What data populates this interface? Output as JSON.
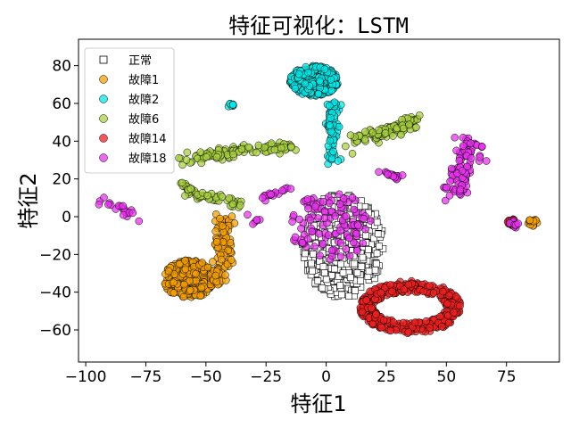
{
  "chart_data": {
    "type": "scatter",
    "title": "特征可视化：LSTM",
    "xlabel": "特征1",
    "ylabel": "特征2",
    "xlim": [
      -103,
      97
    ],
    "ylim": [
      -77,
      94
    ],
    "xticks": [
      -100,
      -75,
      -50,
      -25,
      0,
      25,
      50,
      75
    ],
    "yticks": [
      -60,
      -40,
      -20,
      0,
      20,
      40,
      60,
      80
    ],
    "grid": false,
    "legend_position": "top-left",
    "series": [
      {
        "name": "正常",
        "marker": "square",
        "color": "#ffffff",
        "edge_color": "#000000",
        "clusters": [
          {
            "shape": "blob",
            "center": [
              7,
              -15
            ],
            "rx": 17,
            "ry": 28,
            "count": 450
          }
        ]
      },
      {
        "name": "故障1",
        "marker": "circle",
        "color": "#f5a000",
        "edge_color": "#000000",
        "clusters": [
          {
            "shape": "blob",
            "center": [
              -57,
              -33
            ],
            "rx": 11,
            "ry": 10,
            "count": 350
          },
          {
            "shape": "line",
            "points": [
              [
                -46,
                -35
              ],
              [
                -42,
                -25
              ],
              [
                -43,
                -10
              ],
              [
                -43,
                0
              ]
            ],
            "spread": 2,
            "count": 90
          },
          {
            "shape": "blob",
            "center": [
              86,
              -3
            ],
            "rx": 2,
            "ry": 2,
            "count": 12
          }
        ]
      },
      {
        "name": "故障2",
        "marker": "circle",
        "color": "#00e8e8",
        "edge_color": "#000000",
        "clusters": [
          {
            "shape": "blob",
            "center": [
              -5,
              72
            ],
            "rx": 10,
            "ry": 8,
            "count": 300
          },
          {
            "shape": "line",
            "points": [
              [
                3,
                62
              ],
              [
                2,
                45
              ],
              [
                3,
                30
              ]
            ],
            "spread": 1.5,
            "count": 70
          },
          {
            "shape": "blob",
            "center": [
              -40,
              59
            ],
            "rx": 1.5,
            "ry": 1,
            "count": 8
          }
        ]
      },
      {
        "name": "故障6",
        "marker": "circle",
        "color": "#a8d040",
        "edge_color": "#000000",
        "clusters": [
          {
            "shape": "line",
            "points": [
              [
                -60,
                30
              ],
              [
                -45,
                33
              ],
              [
                -30,
                36
              ],
              [
                -15,
                37
              ]
            ],
            "spread": 1.5,
            "count": 110
          },
          {
            "shape": "line",
            "points": [
              [
                -60,
                18
              ],
              [
                -55,
                11
              ],
              [
                -40,
                9
              ],
              [
                -35,
                6
              ]
            ],
            "spread": 1.2,
            "count": 60
          },
          {
            "shape": "line",
            "points": [
              [
                12,
                40
              ],
              [
                25,
                45
              ],
              [
                38,
                52
              ]
            ],
            "spread": 1.8,
            "count": 100
          }
        ]
      },
      {
        "name": "故障14",
        "marker": "circle",
        "color": "#f02020",
        "edge_color": "#000000",
        "clusters": [
          {
            "shape": "ring",
            "center": [
              35,
              -48
            ],
            "rx": 18,
            "ry": 11,
            "thickness": 3,
            "count": 420
          },
          {
            "shape": "blob",
            "center": [
              77,
              -3
            ],
            "rx": 1.6,
            "ry": 2,
            "count": 18
          }
        ]
      },
      {
        "name": "故障18",
        "marker": "circle",
        "color": "#e833ee",
        "edge_color": "#000000",
        "clusters": [
          {
            "shape": "line",
            "points": [
              [
                -94,
                8
              ],
              [
                -85,
                4
              ],
              [
                -80,
                -1
              ]
            ],
            "spread": 1.2,
            "count": 22
          },
          {
            "shape": "line",
            "points": [
              [
                -27,
                10
              ],
              [
                -21,
                13
              ],
              [
                -16,
                16
              ]
            ],
            "spread": 1.2,
            "count": 18
          },
          {
            "shape": "line",
            "points": [
              [
                -29,
                -1
              ],
              [
                -31,
                -2
              ]
            ],
            "spread": 1.2,
            "count": 6
          },
          {
            "shape": "blob",
            "center": [
              2,
              -5
            ],
            "rx": 17,
            "ry": 18,
            "count": 120
          },
          {
            "shape": "line",
            "points": [
              [
                20,
                23
              ],
              [
                28,
                22
              ],
              [
                33,
                20
              ]
            ],
            "spread": 1,
            "count": 18
          },
          {
            "shape": "line",
            "points": [
              [
                60,
                40
              ],
              [
                58,
                30
              ],
              [
                55,
                20
              ],
              [
                52,
                12
              ]
            ],
            "spread": 3,
            "count": 100
          },
          {
            "shape": "blob",
            "center": [
              78,
              -4
            ],
            "rx": 2,
            "ry": 2,
            "count": 12
          }
        ]
      }
    ]
  }
}
